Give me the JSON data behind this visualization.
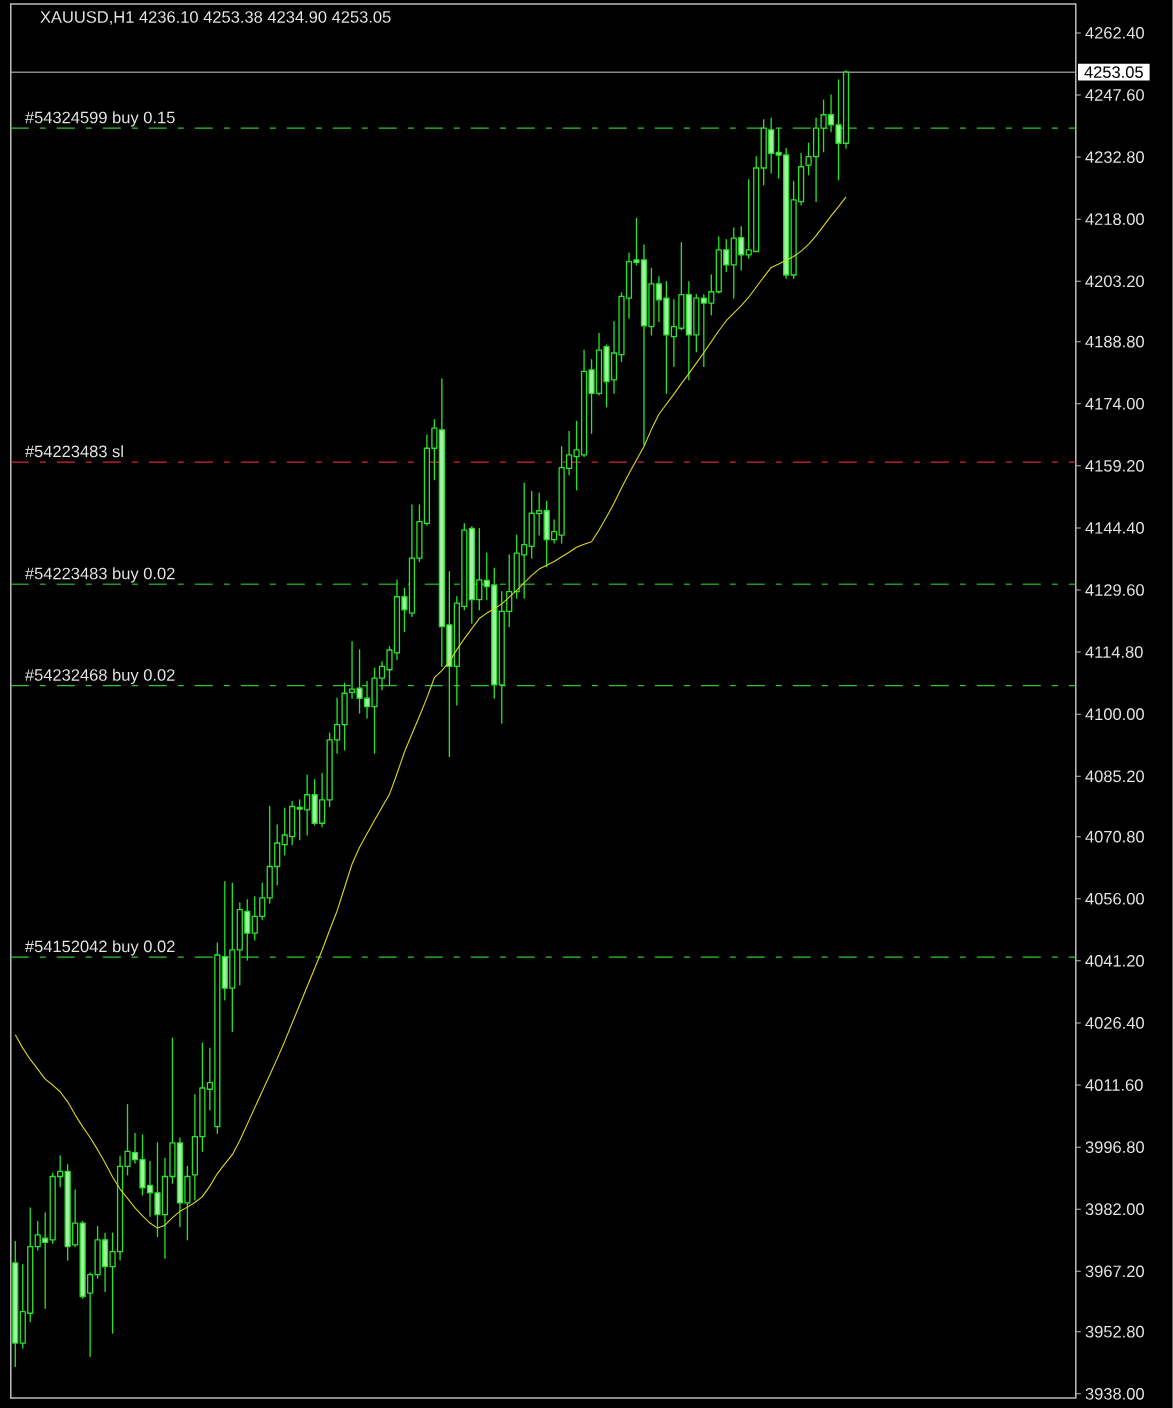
{
  "chart_data": {
    "type": "candlestick",
    "title": "XAUUSD,H1 4236.10 4253.38 4234.90 4253.05",
    "categories": [
      null,
      null,
      null,
      null,
      null,
      null,
      null,
      null,
      null,
      null,
      null,
      null,
      null,
      null,
      null,
      null,
      null,
      null,
      null,
      null,
      null,
      null,
      null,
      null,
      null,
      null,
      null,
      null,
      null,
      null,
      null,
      null,
      null,
      null,
      null,
      null,
      null,
      null,
      null,
      null,
      null,
      null,
      null,
      null,
      null,
      null,
      null,
      null,
      null,
      null,
      null,
      null,
      null,
      null,
      null,
      null,
      null,
      null,
      null,
      null,
      null,
      null,
      null,
      null,
      null,
      null,
      null,
      null,
      null,
      null,
      null,
      null,
      null,
      null,
      null,
      null,
      null,
      null,
      null,
      null,
      null,
      null,
      null,
      null,
      null,
      null,
      null,
      null,
      null,
      null,
      null,
      null,
      null,
      null,
      null,
      null,
      null,
      null,
      null,
      null,
      null,
      null,
      null,
      null,
      null,
      null,
      null,
      null,
      null,
      null,
      null,
      null
    ],
    "color": "#2ae22a",
    "ohlc": [
      [
        3969.2,
        3974.3,
        3944.5,
        3950.1
      ],
      [
        3950.1,
        3968.8,
        3948.9,
        3957.6
      ],
      [
        3957.2,
        3982.3,
        3955.2,
        3973.1
      ],
      [
        3973.1,
        3979.1,
        3972.3,
        3975.9
      ],
      [
        3975.1,
        3981.1,
        3958.4,
        3974.1
      ],
      [
        3974.7,
        3990.6,
        3973.9,
        3989.8
      ],
      [
        3989.8,
        3994.7,
        3987.4,
        3991.0
      ],
      [
        3991.0,
        3992.6,
        3969.9,
        3973.1
      ],
      [
        3973.5,
        3986.6,
        3973.1,
        3978.7
      ],
      [
        3978.7,
        3979.1,
        3960.8,
        3961.2
      ],
      [
        3962.0,
        3966.8,
        3946.9,
        3966.4
      ],
      [
        3966.4,
        3977.9,
        3965.6,
        3974.7
      ],
      [
        3974.7,
        3976.3,
        3962.4,
        3968.3
      ],
      [
        3968.3,
        3976.3,
        3952.5,
        3971.9
      ],
      [
        3971.9,
        3994.6,
        3969.9,
        3992.2
      ],
      [
        3992.2,
        4006.9,
        3990.2,
        3995.8
      ],
      [
        3995.5,
        4000.1,
        3993.0,
        3993.8
      ],
      [
        3993.8,
        3999.7,
        3985.4,
        3987.1
      ],
      [
        3987.7,
        3993.4,
        3980.3,
        3985.9
      ],
      [
        3985.9,
        3997.8,
        3975.5,
        3980.7
      ],
      [
        3980.7,
        3994.2,
        3970.3,
        3989.8
      ],
      [
        3989.8,
        4022.8,
        3988.2,
        3997.8
      ],
      [
        3997.8,
        3999.0,
        3977.9,
        3983.5
      ],
      [
        3983.5,
        3992.2,
        3974.7,
        3989.8
      ],
      [
        3990.2,
        4009.3,
        3984.2,
        3999.3
      ],
      [
        3999.3,
        4021.6,
        3995.8,
        4010.9
      ],
      [
        4010.6,
        4020.4,
        4005.7,
        4012.2
      ],
      [
        4001.7,
        4045.4,
        4000.1,
        4042.6
      ],
      [
        4042.2,
        4060.1,
        4031.9,
        4034.7
      ],
      [
        4034.7,
        4059.7,
        4024.4,
        4043.8
      ],
      [
        4043.8,
        4055.0,
        4035.5,
        4053.4
      ],
      [
        4053.0,
        4055.8,
        4041.4,
        4047.8
      ],
      [
        4047.8,
        4056.5,
        4046.2,
        4051.8
      ],
      [
        4051.8,
        4059.7,
        4051.0,
        4056.2
      ],
      [
        4056.2,
        4078.0,
        4055.0,
        4063.7
      ],
      [
        4063.7,
        4073.6,
        4059.3,
        4069.3
      ],
      [
        4068.9,
        4077.6,
        4066.5,
        4071.2
      ],
      [
        4070.8,
        4079.2,
        4068.9,
        4078.0
      ],
      [
        4077.8,
        4079.6,
        4070.1,
        4077.4
      ],
      [
        4077.2,
        4085.5,
        4071.2,
        4080.8
      ],
      [
        4080.8,
        4084.4,
        4073.6,
        4074.0
      ],
      [
        4074.0,
        4085.9,
        4073.2,
        4079.6
      ],
      [
        4079.6,
        4095.5,
        4078.0,
        4093.9
      ],
      [
        4093.9,
        4103.8,
        4090.7,
        4097.5
      ],
      [
        4097.5,
        4107.4,
        4091.5,
        4105.0
      ],
      [
        4105.2,
        4117.3,
        4103.8,
        4106.0
      ],
      [
        4106.2,
        4115.3,
        4100.3,
        4103.8
      ],
      [
        4103.8,
        4107.8,
        4099.1,
        4101.8
      ],
      [
        4101.8,
        4111.0,
        4090.7,
        4108.6
      ],
      [
        4108.6,
        4112.5,
        4105.8,
        4111.4
      ],
      [
        4110.6,
        4116.1,
        4107.0,
        4115.3
      ],
      [
        4114.6,
        4132.0,
        4113.0,
        4128.0
      ],
      [
        4128.0,
        4130.0,
        4119.7,
        4124.9
      ],
      [
        4124.1,
        4149.9,
        4123.3,
        4137.2
      ],
      [
        4137.2,
        4149.9,
        4136.4,
        4145.9
      ],
      [
        4145.5,
        4166.6,
        4145.1,
        4163.4
      ],
      [
        4163.4,
        4170.2,
        4155.9,
        4168.2
      ],
      [
        4167.8,
        4179.9,
        4111.4,
        4120.9
      ],
      [
        4121.3,
        4134.0,
        4089.9,
        4111.4
      ],
      [
        4111.4,
        4128.0,
        4102.2,
        4126.5
      ],
      [
        4125.7,
        4145.4,
        4124.9,
        4143.9
      ],
      [
        4144.3,
        4144.7,
        4121.7,
        4127.3
      ],
      [
        4127.3,
        4144.3,
        4124.9,
        4132.0
      ],
      [
        4131.9,
        4138.4,
        4127.3,
        4130.4
      ],
      [
        4130.8,
        4134.8,
        4103.8,
        4107.0
      ],
      [
        4107.0,
        4129.2,
        4097.9,
        4124.5
      ],
      [
        4124.5,
        4138.0,
        4120.9,
        4129.2
      ],
      [
        4129.2,
        4142.7,
        4127.7,
        4138.4
      ],
      [
        4138.0,
        4155.1,
        4127.7,
        4140.4
      ],
      [
        4140.0,
        4153.1,
        4137.2,
        4147.9
      ],
      [
        4147.8,
        4152.7,
        4142.7,
        4148.5
      ],
      [
        4148.5,
        4150.7,
        4135.2,
        4141.6
      ],
      [
        4141.6,
        4146.3,
        4140.8,
        4143.5
      ],
      [
        4142.7,
        4163.8,
        4140.8,
        4158.8
      ],
      [
        4158.6,
        4167.4,
        4157.1,
        4161.8
      ],
      [
        4161.4,
        4169.8,
        4153.5,
        4163.0
      ],
      [
        4161.8,
        4186.8,
        4161.4,
        4181.7
      ],
      [
        4182.1,
        4184.5,
        4167.0,
        4176.5
      ],
      [
        4176.5,
        4190.8,
        4176.1,
        4186.8
      ],
      [
        4187.6,
        4188.0,
        4173.3,
        4179.3
      ],
      [
        4179.7,
        4193.6,
        4176.5,
        4186.1
      ],
      [
        4185.7,
        4200.4,
        4184.1,
        4199.6
      ],
      [
        4199.2,
        4209.9,
        4194.4,
        4207.9
      ],
      [
        4208.3,
        4218.2,
        4207.1,
        4207.7
      ],
      [
        4208.3,
        4211.9,
        4164.2,
        4192.6
      ],
      [
        4192.4,
        4206.3,
        4190.4,
        4202.6
      ],
      [
        4202.6,
        4204.3,
        4193.6,
        4198.8
      ],
      [
        4199.2,
        4203.1,
        4176.5,
        4190.4
      ],
      [
        4190.0,
        4198.8,
        4182.9,
        4192.4
      ],
      [
        4192.0,
        4212.4,
        4191.6,
        4200.0
      ],
      [
        4200.0,
        4203.1,
        4179.7,
        4190.4
      ],
      [
        4190.4,
        4200.0,
        4186.4,
        4199.2
      ],
      [
        4199.2,
        4200.0,
        4182.9,
        4198.0
      ],
      [
        4198.0,
        4204.7,
        4195.2,
        4200.7
      ],
      [
        4200.7,
        4213.8,
        4200.4,
        4210.7
      ],
      [
        4210.7,
        4213.1,
        4205.5,
        4207.1
      ],
      [
        4207.1,
        4215.9,
        4199.2,
        4213.5
      ],
      [
        4213.6,
        4216.2,
        4205.9,
        4209.5
      ],
      [
        4209.5,
        4227.4,
        4208.7,
        4210.7
      ],
      [
        4210.3,
        4232.9,
        4210.3,
        4230.2
      ],
      [
        4230.2,
        4241.7,
        4226.2,
        4239.7
      ],
      [
        4239.3,
        4242.1,
        4229.0,
        4233.7
      ],
      [
        4233.9,
        4239.7,
        4227.8,
        4233.3
      ],
      [
        4233.3,
        4234.9,
        4203.9,
        4204.7
      ],
      [
        4204.7,
        4227.0,
        4203.9,
        4222.6
      ],
      [
        4222.2,
        4233.7,
        4221.4,
        4230.5
      ],
      [
        4230.9,
        4236.1,
        4228.6,
        4232.9
      ],
      [
        4232.9,
        4242.1,
        4222.2,
        4239.7
      ],
      [
        4239.7,
        4246.4,
        4234.1,
        4242.9
      ],
      [
        4242.9,
        4247.6,
        4238.9,
        4240.5
      ],
      [
        4240.5,
        4251.2,
        4227.4,
        4236.1
      ],
      [
        4236.1,
        4253.38,
        4234.9,
        4253.05
      ]
    ],
    "series": [
      {
        "type": "line",
        "color": "#d8d820",
        "values": [
          4023.6,
          4020.4,
          4017.7,
          4015.4,
          4013.0,
          4011.6,
          4010.0,
          4007.6,
          4004.5,
          4001.7,
          3999.1,
          3996.2,
          3993.1,
          3989.7,
          3986.8,
          3984.6,
          3982.3,
          3980.4,
          3978.7,
          3977.5,
          3978.2,
          3980.0,
          3981.5,
          3982.5,
          3983.6,
          3985.0,
          3987.5,
          3990.5,
          3992.8,
          3995.0,
          3998.4,
          4002.3,
          4006.2,
          4010.1,
          4014.0,
          4017.9,
          4022.0,
          4026.4,
          4030.7,
          4035.1,
          4039.4,
          4043.8,
          4048.5,
          4053.1,
          4058.7,
          4064.3,
          4068.3,
          4071.5,
          4074.7,
          4077.8,
          4080.9,
          4085.8,
          4091.0,
          4095.3,
          4099.5,
          4103.9,
          4108.7,
          4110.4,
          4112.5,
          4115.4,
          4118.0,
          4120.4,
          4122.8,
          4124.1,
          4125.1,
          4126.3,
          4127.9,
          4129.5,
          4131.3,
          4133.1,
          4134.6,
          4135.5,
          4136.4,
          4137.5,
          4138.6,
          4139.8,
          4140.5,
          4141.1,
          4143.9,
          4147.0,
          4150.3,
          4153.9,
          4157.4,
          4160.6,
          4163.8,
          4167.9,
          4171.5,
          4173.9,
          4176.3,
          4178.8,
          4181.2,
          4183.7,
          4186.2,
          4188.8,
          4191.4,
          4193.8,
          4195.6,
          4197.4,
          4199.4,
          4201.8,
          4204.2,
          4206.5,
          4207.3,
          4208.2,
          4209.1,
          4210.4,
          4212.0,
          4214.1,
          4216.4,
          4218.8,
          4221.0,
          4223.3
        ]
      }
    ],
    "ylim": [
      3937.0,
      4269.3
    ],
    "yticks": [
      {
        "value": 3938.0,
        "label": "3938.00"
      },
      {
        "value": 3952.8,
        "label": "3952.80"
      },
      {
        "value": 3967.2,
        "label": "3967.20"
      },
      {
        "value": 3982.0,
        "label": "3982.00"
      },
      {
        "value": 3996.8,
        "label": "3996.80"
      },
      {
        "value": 4011.6,
        "label": "4011.60"
      },
      {
        "value": 4026.4,
        "label": "4026.40"
      },
      {
        "value": 4041.2,
        "label": "4041.20"
      },
      {
        "value": 4056.0,
        "label": "4056.00"
      },
      {
        "value": 4070.8,
        "label": "4070.80"
      },
      {
        "value": 4085.2,
        "label": "4085.20"
      },
      {
        "value": 4100.0,
        "label": "4100.00"
      },
      {
        "value": 4114.8,
        "label": "4114.80"
      },
      {
        "value": 4129.6,
        "label": "4129.60"
      },
      {
        "value": 4144.4,
        "label": "4144.40"
      },
      {
        "value": 4159.2,
        "label": "4159.20"
      },
      {
        "value": 4174.0,
        "label": "4174.00"
      },
      {
        "value": 4188.8,
        "label": "4188.80"
      },
      {
        "value": 4203.2,
        "label": "4203.20"
      },
      {
        "value": 4218.0,
        "label": "4218.00"
      },
      {
        "value": 4232.8,
        "label": "4232.80"
      },
      {
        "value": 4247.6,
        "label": "4247.60"
      },
      {
        "value": 4262.4,
        "label": "4262.40"
      }
    ],
    "tick_labels": "y",
    "ref_lines": [
      {
        "axis": "y",
        "value": 4239.7,
        "label": "#54324599 buy 0.15",
        "color": "#2ec82e",
        "line_style": "dashdot"
      },
      {
        "axis": "y",
        "value": 4160.1,
        "label": "#54223483 sl",
        "color": "#d8243c",
        "line_style": "dashdot"
      },
      {
        "axis": "y",
        "value": 4131.0,
        "label": "#54223483 buy 0.02",
        "color": "#2ec82e",
        "line_style": "dashdot"
      },
      {
        "axis": "y",
        "value": 4106.8,
        "label": "#54232468 buy 0.02",
        "color": "#2ec82e",
        "line_style": "dashdot"
      },
      {
        "axis": "y",
        "value": 4042.1,
        "label": "#54152042 buy 0.02",
        "color": "#2ec82e",
        "line_style": "dashdot"
      },
      {
        "axis": "y",
        "value": 4253.05,
        "label": "4253.05",
        "color": "#b4b4b4",
        "line_style": "solid"
      }
    ]
  }
}
